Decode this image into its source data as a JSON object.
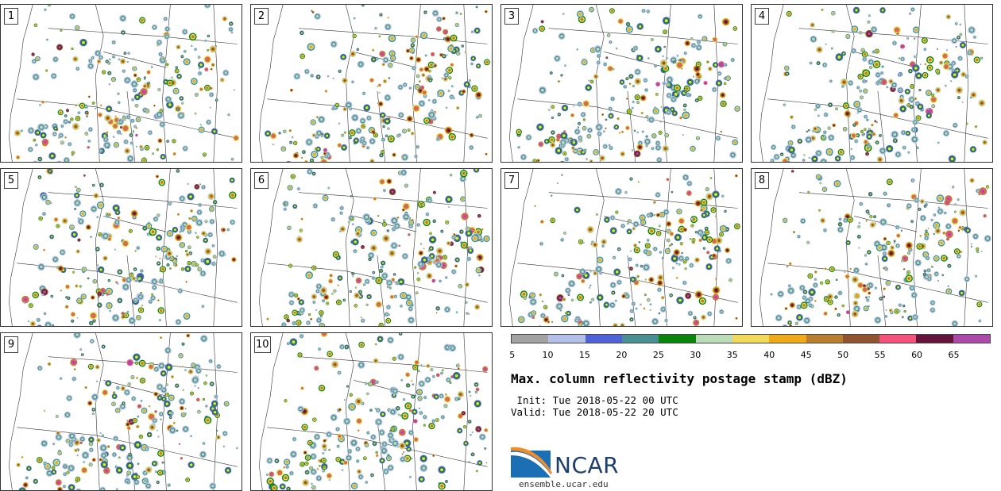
{
  "panels": [
    "1",
    "2",
    "3",
    "4",
    "5",
    "6",
    "7",
    "8",
    "9",
    "10"
  ],
  "colorbar": {
    "colors": [
      "#a3a3a3",
      "#b4bfe8",
      "#5062d6",
      "#4a8f92",
      "#0a840a",
      "#bcdcb9",
      "#f0da5c",
      "#eeaa18",
      "#b97f2f",
      "#905530",
      "#f4547c",
      "#64143a",
      "#ab4aa8"
    ],
    "ticks": [
      "5",
      "10",
      "15",
      "20",
      "25",
      "30",
      "35",
      "40",
      "45",
      "50",
      "55",
      "60",
      "65"
    ]
  },
  "title": "Max. column reflectivity postage stamp (dBZ)",
  "init": " Init: Tue 2018-05-22 00 UTC",
  "valid": "Valid: Tue 2018-05-22 20 UTC",
  "logo": {
    "text": "NCAR",
    "website": "ensemble.ucar.edu",
    "color": "#1f3f6b"
  }
}
